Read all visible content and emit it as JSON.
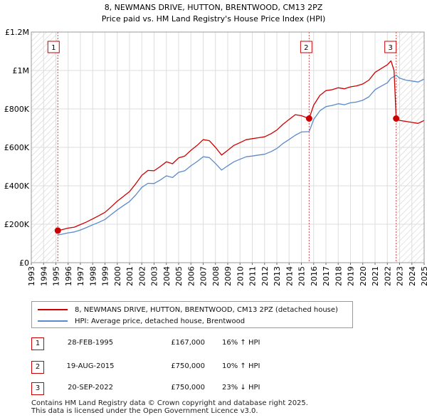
{
  "chart_data": {
    "type": "line",
    "title": "8, NEWMANS DRIVE, HUTTON, BRENTWOOD, CM13 2PZ",
    "subtitle": "Price paid vs. HM Land Registry's House Price Index (HPI)",
    "xlabel": "",
    "ylabel": "",
    "xlim": [
      1993.0,
      2025.0
    ],
    "ylim": [
      0,
      1200000
    ],
    "y_ticks": [
      0,
      200000,
      400000,
      600000,
      800000,
      1000000,
      1200000
    ],
    "y_tick_labels": [
      "£0",
      "£200K",
      "£400K",
      "£600K",
      "£800K",
      "£1M",
      "£1.2M"
    ],
    "x_ticks": [
      "1993",
      "1994",
      "1995",
      "1996",
      "1997",
      "1998",
      "1999",
      "2000",
      "2001",
      "2002",
      "2003",
      "2004",
      "2005",
      "2006",
      "2007",
      "2008",
      "2009",
      "2010",
      "2011",
      "2012",
      "2013",
      "2014",
      "2015",
      "2016",
      "2017",
      "2018",
      "2019",
      "2020",
      "2021",
      "2022",
      "2023",
      "2024",
      "2025"
    ],
    "grid": true,
    "hatched_ranges": [
      [
        1993.0,
        1995.16
      ],
      [
        2022.72,
        2025.0
      ]
    ],
    "series": [
      {
        "name": "8, NEWMANS DRIVE, HUTTON, BRENTWOOD, CM13 2PZ (detached house)",
        "color": "#cc0000",
        "x": [
          1995.16,
          1995.5,
          1996.0,
          1996.5,
          1997.0,
          1997.5,
          1998.0,
          1998.5,
          1999.0,
          1999.5,
          2000.0,
          2000.5,
          2001.0,
          2001.5,
          2002.0,
          2002.5,
          2003.0,
          2003.5,
          2004.0,
          2004.5,
          2005.0,
          2005.5,
          2006.0,
          2006.5,
          2007.0,
          2007.5,
          2008.0,
          2008.5,
          2009.0,
          2009.5,
          2010.0,
          2010.5,
          2011.0,
          2011.5,
          2012.0,
          2012.5,
          2013.0,
          2013.5,
          2014.0,
          2014.5,
          2015.0,
          2015.63,
          2016.0,
          2016.5,
          2017.0,
          2017.5,
          2018.0,
          2018.5,
          2019.0,
          2019.5,
          2020.0,
          2020.5,
          2021.0,
          2021.5,
          2022.0,
          2022.3,
          2022.55,
          2022.72,
          2023.0,
          2023.5,
          2024.0,
          2024.5,
          2025.0
        ],
        "values": [
          167000,
          172000,
          180000,
          185000,
          198000,
          212000,
          228000,
          245000,
          262000,
          290000,
          320000,
          345000,
          370000,
          410000,
          455000,
          480000,
          478000,
          500000,
          525000,
          515000,
          545000,
          555000,
          585000,
          610000,
          640000,
          635000,
          600000,
          560000,
          585000,
          610000,
          625000,
          640000,
          645000,
          650000,
          655000,
          670000,
          690000,
          720000,
          745000,
          770000,
          765000,
          750000,
          820000,
          870000,
          895000,
          900000,
          910000,
          905000,
          915000,
          920000,
          930000,
          950000,
          990000,
          1010000,
          1030000,
          1050000,
          1000000,
          750000,
          740000,
          735000,
          730000,
          725000,
          740000
        ]
      },
      {
        "name": "HPI: Average price, detached house, Brentwood",
        "color": "#5b8ac9",
        "x": [
          1995.16,
          1995.5,
          1996.0,
          1996.5,
          1997.0,
          1997.5,
          1998.0,
          1998.5,
          1999.0,
          1999.5,
          2000.0,
          2000.5,
          2001.0,
          2001.5,
          2002.0,
          2002.5,
          2003.0,
          2003.5,
          2004.0,
          2004.5,
          2005.0,
          2005.5,
          2006.0,
          2006.5,
          2007.0,
          2007.5,
          2008.0,
          2008.5,
          2009.0,
          2009.5,
          2010.0,
          2010.5,
          2011.0,
          2011.5,
          2012.0,
          2012.5,
          2013.0,
          2013.5,
          2014.0,
          2014.5,
          2015.0,
          2015.63,
          2016.0,
          2016.5,
          2017.0,
          2017.5,
          2018.0,
          2018.5,
          2019.0,
          2019.5,
          2020.0,
          2020.5,
          2021.0,
          2021.5,
          2022.0,
          2022.3,
          2022.72,
          2023.0,
          2023.5,
          2024.0,
          2024.5,
          2025.0
        ],
        "values": [
          144000,
          148000,
          155000,
          160000,
          170000,
          183000,
          197000,
          210000,
          225000,
          250000,
          275000,
          297000,
          318000,
          352000,
          392000,
          413000,
          412000,
          430000,
          452000,
          443000,
          470000,
          478000,
          504000,
          526000,
          551000,
          547000,
          516000,
          482000,
          504000,
          525000,
          538000,
          551000,
          555000,
          560000,
          564000,
          577000,
          594000,
          620000,
          641000,
          663000,
          680000,
          682000,
          745000,
          790000,
          812000,
          818000,
          827000,
          822000,
          832000,
          836000,
          845000,
          863000,
          900000,
          918000,
          936000,
          960000,
          975000,
          960000,
          950000,
          945000,
          940000,
          955000
        ]
      }
    ],
    "sale_markers": [
      {
        "label": "1",
        "x": 1995.16,
        "value": 167000
      },
      {
        "label": "2",
        "x": 2015.63,
        "value": 750000
      },
      {
        "label": "3",
        "x": 2022.72,
        "value": 750000
      }
    ]
  },
  "legend": {
    "property_label": "8, NEWMANS DRIVE, HUTTON, BRENTWOOD, CM13 2PZ (detached house)",
    "hpi_label": "HPI: Average price, detached house, Brentwood"
  },
  "transactions": [
    {
      "num": "1",
      "date": "28-FEB-1995",
      "price": "£167,000",
      "hpi": "16% ↑ HPI"
    },
    {
      "num": "2",
      "date": "19-AUG-2015",
      "price": "£750,000",
      "hpi": "10% ↑ HPI"
    },
    {
      "num": "3",
      "date": "20-SEP-2022",
      "price": "£750,000",
      "hpi": "23% ↓ HPI"
    }
  ],
  "footer": {
    "line1": "Contains HM Land Registry data © Crown copyright and database right 2025.",
    "line2": "This data is licensed under the Open Government Licence v3.0."
  },
  "colors": {
    "property": "#cc0000",
    "hpi": "#5b8ac9",
    "marker_border": "#cc0000"
  }
}
